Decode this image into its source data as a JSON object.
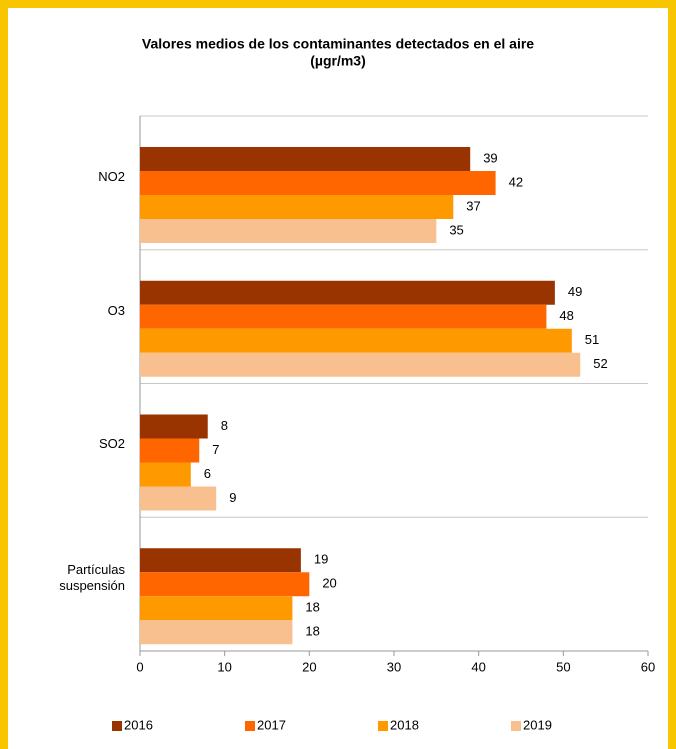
{
  "chart_data": {
    "type": "hbar",
    "title": "Valores medios de los contaminantes detectados en el aire",
    "subtitle": "(µgr/m3)",
    "categories": [
      "NO2",
      "O3",
      "SO2",
      "Partículas suspensión"
    ],
    "series": [
      {
        "name": "2016",
        "color": "#993300",
        "values": [
          39,
          49,
          8,
          19
        ]
      },
      {
        "name": "2017",
        "color": "#ff6600",
        "values": [
          42,
          48,
          7,
          20
        ]
      },
      {
        "name": "2018",
        "color": "#ff9900",
        "values": [
          37,
          51,
          6,
          18
        ]
      },
      {
        "name": "2019",
        "color": "#f9c08f",
        "values": [
          35,
          52,
          9,
          18
        ]
      }
    ],
    "xlim": [
      0,
      60
    ],
    "xticks": [
      0,
      10,
      20,
      30,
      40,
      50,
      60
    ],
    "legend": "bottom"
  }
}
